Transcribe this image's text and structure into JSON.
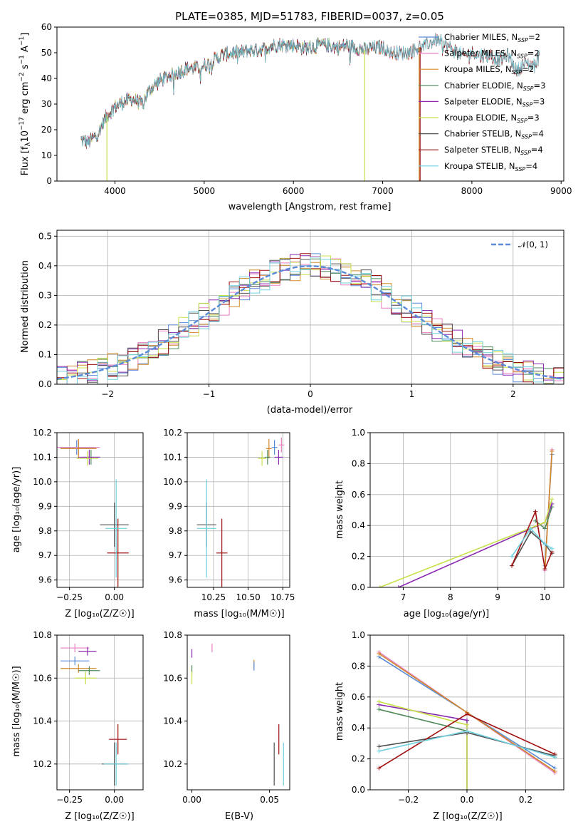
{
  "colors": {
    "chabrier_miles": "#5b8bd8",
    "salpeter_miles": "#e87fc0",
    "kroupa_miles": "#d08a2a",
    "chabrier_elodie": "#4f8a5a",
    "salpeter_elodie": "#8a2bb0",
    "kroupa_elodie": "#c8e04a",
    "chabrier_stelib": "#505050",
    "salpeter_stelib": "#a01010",
    "kroupa_stelib": "#6fd0e0",
    "normal": "#5b8bd8"
  },
  "chart_data": [
    {
      "id": "spectrum",
      "type": "line",
      "title": "PLATE=0385, MJD=51783, FIBERID=0037, z=0.05",
      "xlabel": "wavelength [Angstrom, rest frame]",
      "ylabel": "Flux [f_λ 10^-17 erg cm^-2 s^-1 A^-1]",
      "xlim": [
        3350,
        9030
      ],
      "ylim": [
        0,
        60
      ],
      "xticks": [
        "4000",
        "5000",
        "6000",
        "7000",
        "8000",
        "9000"
      ],
      "yticks": [
        "0",
        "10",
        "20",
        "30",
        "40",
        "50",
        "60"
      ],
      "grid": false,
      "legend_position": "top-right",
      "legend": [
        {
          "key": "chabrier_miles",
          "label": "Chabrier MILES, N",
          "sub": "SSP",
          "suffix": "=2"
        },
        {
          "key": "salpeter_miles",
          "label": "Salpeter MILES, N",
          "sub": "SSP",
          "suffix": "=2"
        },
        {
          "key": "kroupa_miles",
          "label": "Kroupa MILES, N",
          "sub": "SSP",
          "suffix": "=2"
        },
        {
          "key": "chabrier_elodie",
          "label": "Chabrier ELODIE, N",
          "sub": "SSP",
          "suffix": "=3"
        },
        {
          "key": "salpeter_elodie",
          "label": "Salpeter ELODIE, N",
          "sub": "SSP",
          "suffix": "=3"
        },
        {
          "key": "kroupa_elodie",
          "label": "Kroupa ELODIE, N",
          "sub": "SSP",
          "suffix": "=3"
        },
        {
          "key": "chabrier_stelib",
          "label": "Chabrier STELIB, N",
          "sub": "SSP",
          "suffix": "=4"
        },
        {
          "key": "salpeter_stelib",
          "label": "Salpeter STELIB, N",
          "sub": "SSP",
          "suffix": "=4"
        },
        {
          "key": "kroupa_stelib",
          "label": "Kroupa STELIB, N",
          "sub": "SSP",
          "suffix": "=4"
        }
      ],
      "continuum": [
        [
          3620,
          16
        ],
        [
          3700,
          15
        ],
        [
          3800,
          18
        ],
        [
          3900,
          25
        ],
        [
          4000,
          29
        ],
        [
          4100,
          31
        ],
        [
          4200,
          32
        ],
        [
          4300,
          30
        ],
        [
          4400,
          36
        ],
        [
          4500,
          39
        ],
        [
          4600,
          41
        ],
        [
          4700,
          42
        ],
        [
          4800,
          44
        ],
        [
          4900,
          44
        ],
        [
          5000,
          45
        ],
        [
          5100,
          47
        ],
        [
          5200,
          49
        ],
        [
          5300,
          50
        ],
        [
          5400,
          50
        ],
        [
          5500,
          51
        ],
        [
          5600,
          51
        ],
        [
          5700,
          52
        ],
        [
          5800,
          53
        ],
        [
          5900,
          53
        ],
        [
          6000,
          53
        ],
        [
          6100,
          52
        ],
        [
          6200,
          52
        ],
        [
          6300,
          53
        ],
        [
          6400,
          53
        ],
        [
          6500,
          52
        ],
        [
          6600,
          53
        ],
        [
          6700,
          52
        ],
        [
          6800,
          51
        ],
        [
          6900,
          52
        ],
        [
          7000,
          52
        ],
        [
          7100,
          50
        ],
        [
          7200,
          50
        ],
        [
          7300,
          50
        ],
        [
          7400,
          52
        ],
        [
          7500,
          53
        ],
        [
          7600,
          55
        ],
        [
          7700,
          53
        ],
        [
          7800,
          51
        ],
        [
          7900,
          49
        ],
        [
          8000,
          50
        ],
        [
          8100,
          49
        ],
        [
          8200,
          49
        ],
        [
          8300,
          47
        ],
        [
          8400,
          49
        ],
        [
          8500,
          43
        ],
        [
          8600,
          46
        ],
        [
          8700,
          45
        ],
        [
          8760,
          49
        ]
      ],
      "dropouts": [
        {
          "key": "kroupa_elodie",
          "x": 3910
        },
        {
          "key": "kroupa_elodie",
          "x": 6800
        },
        {
          "key": "salpeter_stelib",
          "x": 7420
        },
        {
          "key": "kroupa_miles",
          "x": 7410
        }
      ],
      "series_limits": {
        "miles": 7410,
        "elodie": 6800,
        "stelib": 8760
      }
    },
    {
      "id": "residuals",
      "type": "histogram",
      "xlabel": "(data-model)/error",
      "ylabel": "Normed distribution",
      "xlim": [
        -2.5,
        2.5
      ],
      "ylim": [
        0,
        0.52
      ],
      "xticks": [
        "−2",
        "−1",
        "0",
        "1",
        "2"
      ],
      "yticks": [
        "0.0",
        "0.1",
        "0.2",
        "0.3",
        "0.4",
        "0.5"
      ],
      "grid": true,
      "bin_width": 0.1,
      "legend_position": "top-right",
      "legend": [
        {
          "key": "normal",
          "label": "𝒩(0, 1)"
        }
      ]
    },
    {
      "id": "age_vs_z",
      "type": "scatter",
      "xlabel": "Z [log₁₀(Z/Z☉)]",
      "ylabel": "age  [log₁₀(age/yr)]",
      "xlim": [
        -0.32,
        0.16
      ],
      "ylim": [
        9.57,
        10.2
      ],
      "xticks": [
        "−0.25",
        "0.00"
      ],
      "yticks": [
        "9.6",
        "9.7",
        "9.8",
        "9.9",
        "10.0",
        "10.1",
        "10.2"
      ],
      "grid": true,
      "points": [
        {
          "key": "chabrier_miles",
          "x": -0.21,
          "y": 10.14,
          "xerr": 0.1,
          "yerr": 0.03
        },
        {
          "key": "salpeter_miles",
          "x": -0.2,
          "y": 10.14,
          "xerr": 0.12,
          "yerr": 0.03
        },
        {
          "key": "kroupa_miles",
          "x": -0.2,
          "y": 10.135,
          "xerr": 0.1,
          "yerr": 0.04
        },
        {
          "key": "chabrier_elodie",
          "x": -0.13,
          "y": 10.1,
          "xerr": 0.05,
          "yerr": 0.03
        },
        {
          "key": "salpeter_elodie",
          "x": -0.14,
          "y": 10.1,
          "xerr": 0.06,
          "yerr": 0.03
        },
        {
          "key": "kroupa_elodie",
          "x": -0.15,
          "y": 10.095,
          "xerr": 0.06,
          "yerr": 0.03
        },
        {
          "key": "chabrier_stelib",
          "x": 0.0,
          "y": 9.825,
          "xerr": 0.08,
          "yerr": 0.09
        },
        {
          "key": "salpeter_stelib",
          "x": 0.02,
          "y": 9.71,
          "xerr": 0.06,
          "yerr": 0.14
        },
        {
          "key": "kroupa_stelib",
          "x": 0.01,
          "y": 9.81,
          "xerr": 0.06,
          "yerr": 0.2
        }
      ]
    },
    {
      "id": "age_vs_mass",
      "type": "scatter",
      "xlabel": "mass [log₁₀(M/M☉)]",
      "ylabel": "",
      "xlim": [
        10.06,
        10.8
      ],
      "ylim": [
        9.57,
        10.2
      ],
      "xticks": [
        "10.25",
        "10.50",
        "10.75"
      ],
      "xtick_values": [
        10.25,
        10.5,
        10.75
      ],
      "yticks": [
        "9.6",
        "9.7",
        "9.8",
        "9.9",
        "10.0",
        "10.1",
        "10.2"
      ],
      "grid": true,
      "points": [
        {
          "key": "chabrier_miles",
          "x": 10.69,
          "y": 10.14,
          "xerr": 0.02,
          "yerr": 0.03
        },
        {
          "key": "salpeter_miles",
          "x": 10.74,
          "y": 10.15,
          "xerr": 0.02,
          "yerr": 0.03
        },
        {
          "key": "kroupa_miles",
          "x": 10.65,
          "y": 10.135,
          "xerr": 0.02,
          "yerr": 0.04
        },
        {
          "key": "chabrier_elodie",
          "x": 10.64,
          "y": 10.1,
          "xerr": 0.02,
          "yerr": 0.03
        },
        {
          "key": "salpeter_elodie",
          "x": 10.72,
          "y": 10.1,
          "xerr": 0.03,
          "yerr": 0.03
        },
        {
          "key": "kroupa_elodie",
          "x": 10.6,
          "y": 10.095,
          "xerr": 0.03,
          "yerr": 0.03
        },
        {
          "key": "chabrier_stelib",
          "x": 10.2,
          "y": 9.825,
          "xerr": 0.07,
          "yerr": 0.09
        },
        {
          "key": "salpeter_stelib",
          "x": 10.31,
          "y": 9.71,
          "xerr": 0.04,
          "yerr": 0.14
        },
        {
          "key": "kroupa_stelib",
          "x": 10.2,
          "y": 9.81,
          "xerr": 0.07,
          "yerr": 0.2
        }
      ]
    },
    {
      "id": "massweight_vs_age",
      "type": "line",
      "xlabel": "age  [log₁₀(age/yr)]",
      "ylabel": "mass weight",
      "xlim": [
        6.3,
        10.4
      ],
      "ylim": [
        0,
        1
      ],
      "xticks": [
        "7",
        "8",
        "9",
        "10"
      ],
      "yticks": [
        "0.0",
        "0.2",
        "0.4",
        "0.6",
        "0.8",
        "1.0"
      ],
      "grid": true,
      "series": [
        {
          "key": "chabrier_miles",
          "points": [
            [
              10.0,
              0.14
            ],
            [
              10.15,
              0.86
            ]
          ]
        },
        {
          "key": "salpeter_miles",
          "points": [
            [
              10.0,
              0.11
            ],
            [
              10.15,
              0.89
            ]
          ]
        },
        {
          "key": "kroupa_miles",
          "points": [
            [
              10.0,
              0.12
            ],
            [
              10.15,
              0.88
            ]
          ]
        },
        {
          "key": "chabrier_elodie",
          "points": [
            [
              9.8,
              0.43
            ],
            [
              10.0,
              0.38
            ],
            [
              10.15,
              0.52
            ]
          ]
        },
        {
          "key": "salpeter_elodie",
          "points": [
            [
              6.9,
              0.0
            ],
            [
              10.0,
              0.42
            ],
            [
              10.15,
              0.54
            ]
          ]
        },
        {
          "key": "kroupa_elodie",
          "points": [
            [
              6.5,
              0.0
            ],
            [
              10.0,
              0.42
            ],
            [
              10.15,
              0.57
            ]
          ]
        },
        {
          "key": "chabrier_stelib",
          "points": [
            [
              9.3,
              0.14
            ],
            [
              9.7,
              0.36
            ],
            [
              10.0,
              0.28
            ],
            [
              10.15,
              0.22
            ]
          ]
        },
        {
          "key": "salpeter_stelib",
          "points": [
            [
              9.3,
              0.14
            ],
            [
              9.8,
              0.49
            ],
            [
              10.0,
              0.12
            ],
            [
              10.15,
              0.23
            ]
          ]
        },
        {
          "key": "kroupa_stelib",
          "points": [
            [
              9.3,
              0.2
            ],
            [
              9.7,
              0.38
            ],
            [
              10.0,
              0.28
            ],
            [
              10.15,
              0.25
            ]
          ]
        }
      ]
    },
    {
      "id": "mass_vs_z",
      "type": "scatter",
      "xlabel": "Z [log₁₀(Z/Z☉)]",
      "ylabel": "mass [log₁₀(M/M☉)]",
      "xlim": [
        -0.32,
        0.16
      ],
      "ylim": [
        10.08,
        10.8
      ],
      "xticks": [
        "−0.25",
        "0.00"
      ],
      "yticks": [
        "10.2",
        "10.4",
        "10.6",
        "10.8"
      ],
      "grid": true,
      "points": [
        {
          "key": "chabrier_miles",
          "x": -0.22,
          "y": 10.68,
          "xerr": 0.08,
          "yerr": 0.02
        },
        {
          "key": "salpeter_miles",
          "x": -0.22,
          "y": 10.74,
          "xerr": 0.08,
          "yerr": 0.02
        },
        {
          "key": "kroupa_miles",
          "x": -0.2,
          "y": 10.645,
          "xerr": 0.1,
          "yerr": 0.02
        },
        {
          "key": "chabrier_elodie",
          "x": -0.14,
          "y": 10.635,
          "xerr": 0.06,
          "yerr": 0.02
        },
        {
          "key": "salpeter_elodie",
          "x": -0.15,
          "y": 10.725,
          "xerr": 0.05,
          "yerr": 0.02
        },
        {
          "key": "kroupa_elodie",
          "x": -0.16,
          "y": 10.6,
          "xerr": 0.06,
          "yerr": 0.03
        },
        {
          "key": "chabrier_stelib",
          "x": 0.0,
          "y": 10.2,
          "xerr": 0.07,
          "yerr": 0.1
        },
        {
          "key": "salpeter_stelib",
          "x": 0.02,
          "y": 10.315,
          "xerr": 0.05,
          "yerr": 0.07
        },
        {
          "key": "kroupa_stelib",
          "x": 0.01,
          "y": 10.2,
          "xerr": 0.07,
          "yerr": 0.1
        }
      ]
    },
    {
      "id": "mass_vs_ebv",
      "type": "scatter",
      "xlabel": "E(B-V)",
      "ylabel": "",
      "xlim": [
        -0.003,
        0.063
      ],
      "ylim": [
        10.08,
        10.8
      ],
      "xticks": [
        "0.00",
        "0.05"
      ],
      "xtick_values": [
        0.0,
        0.05
      ],
      "yticks": [
        "10.2",
        "10.4",
        "10.6",
        "10.8"
      ],
      "grid": false,
      "points": [
        {
          "key": "salpeter_miles",
          "x": 0.013,
          "y": 10.74,
          "xerr": 0,
          "yerr": 0.02
        },
        {
          "key": "salpeter_elodie",
          "x": 0.0,
          "y": 10.715,
          "xerr": 0,
          "yerr": 0.02
        },
        {
          "key": "chabrier_elodie",
          "x": 0.0,
          "y": 10.64,
          "xerr": 0,
          "yerr": 0.02
        },
        {
          "key": "kroupa_elodie",
          "x": 0.0,
          "y": 10.6,
          "xerr": 0,
          "yerr": 0.03
        },
        {
          "key": "kroupa_miles",
          "x": 0.04,
          "y": 10.665,
          "xerr": 0,
          "yerr": 0.02
        },
        {
          "key": "chabrier_miles",
          "x": 0.04,
          "y": 10.655,
          "xerr": 0,
          "yerr": 0.02
        },
        {
          "key": "chabrier_stelib",
          "x": 0.053,
          "y": 10.2,
          "xerr": 0,
          "yerr": 0.1
        },
        {
          "key": "salpeter_stelib",
          "x": 0.056,
          "y": 10.315,
          "xerr": 0,
          "yerr": 0.07
        },
        {
          "key": "kroupa_stelib",
          "x": 0.059,
          "y": 10.2,
          "xerr": 0,
          "yerr": 0.1
        }
      ]
    },
    {
      "id": "massweight_vs_z",
      "type": "line",
      "xlabel": "Z [log₁₀(Z/Z☉)]",
      "ylabel": "mass weight",
      "xlim": [
        -0.33,
        0.33
      ],
      "ylim": [
        0,
        1
      ],
      "xticks": [
        "−0.2",
        "0.0",
        "0.2"
      ],
      "xtick_values": [
        -0.2,
        0.0,
        0.2
      ],
      "yticks": [
        "0.0",
        "0.2",
        "0.4",
        "0.6",
        "0.8",
        "1.0"
      ],
      "grid": true,
      "series": [
        {
          "key": "chabrier_miles",
          "points": [
            [
              -0.3,
              0.86
            ],
            [
              0.0,
              0.5
            ],
            [
              0.3,
              0.14
            ]
          ]
        },
        {
          "key": "salpeter_miles",
          "points": [
            [
              -0.3,
              0.89
            ],
            [
              0.0,
              0.5
            ],
            [
              0.3,
              0.11
            ]
          ]
        },
        {
          "key": "kroupa_miles",
          "points": [
            [
              -0.3,
              0.88
            ],
            [
              0.0,
              0.5
            ],
            [
              0.3,
              0.12
            ]
          ]
        },
        {
          "key": "chabrier_elodie",
          "points": [
            [
              -0.3,
              0.52
            ],
            [
              0.0,
              0.38
            ]
          ]
        },
        {
          "key": "salpeter_elodie",
          "points": [
            [
              -0.3,
              0.55
            ],
            [
              0.0,
              0.45
            ],
            [
              0.0,
              0.0
            ]
          ]
        },
        {
          "key": "kroupa_elodie",
          "points": [
            [
              -0.3,
              0.57
            ],
            [
              0.0,
              0.42
            ],
            [
              0.0,
              0.0
            ]
          ]
        },
        {
          "key": "chabrier_stelib",
          "points": [
            [
              -0.3,
              0.28
            ],
            [
              0.0,
              0.37
            ],
            [
              0.3,
              0.22
            ]
          ]
        },
        {
          "key": "salpeter_stelib",
          "points": [
            [
              -0.3,
              0.14
            ],
            [
              0.0,
              0.49
            ],
            [
              0.3,
              0.23
            ]
          ]
        },
        {
          "key": "kroupa_stelib",
          "points": [
            [
              -0.3,
              0.25
            ],
            [
              0.0,
              0.38
            ],
            [
              0.3,
              0.21
            ]
          ]
        }
      ]
    }
  ]
}
